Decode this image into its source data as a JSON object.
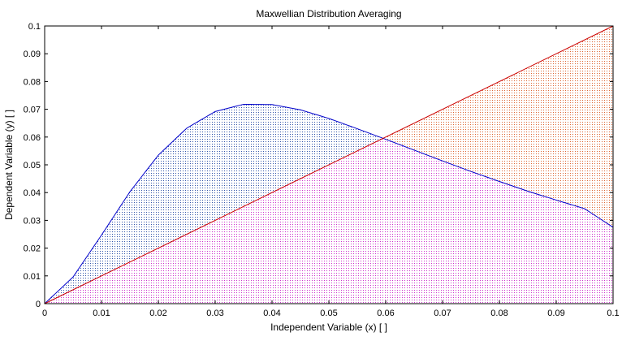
{
  "chart_data": {
    "type": "area",
    "title": "Maxwellian Distribution Averaging",
    "xlabel": "Independent Variable (x) [ ]",
    "ylabel": "Dependent Variable (y) [ ]",
    "xlim": [
      0,
      0.1
    ],
    "ylim": [
      0,
      0.1
    ],
    "x_ticks": [
      "0",
      "0.01",
      "0.02",
      "0.03",
      "0.04",
      "0.05",
      "0.06",
      "0.07",
      "0.08",
      "0.09",
      "0.1"
    ],
    "y_ticks": [
      "0",
      "0.01",
      "0.02",
      "0.03",
      "0.04",
      "0.05",
      "0.06",
      "0.07",
      "0.08",
      "0.09",
      "0.1"
    ],
    "grid": false,
    "legend": "none",
    "series": [
      {
        "color": "#0000cc",
        "x": [
          0,
          0.005,
          0.01,
          0.015,
          0.02,
          0.025,
          0.03,
          0.035,
          0.04,
          0.045,
          0.05,
          0.055,
          0.06,
          0.065,
          0.07,
          0.075,
          0.08,
          0.085,
          0.09,
          0.095,
          0.1
        ],
        "values": [
          0,
          0.0096,
          0.0247,
          0.0403,
          0.0535,
          0.0632,
          0.0692,
          0.0718,
          0.0717,
          0.0698,
          0.0667,
          0.063,
          0.0592,
          0.0553,
          0.0514,
          0.0476,
          0.044,
          0.0405,
          0.0373,
          0.0342,
          0.0275
        ]
      },
      {
        "color": "#cc0000",
        "x": [
          0,
          0.1
        ],
        "values": [
          0,
          0.1
        ]
      }
    ],
    "fill_colors": {
      "below_both": "#cc33cc",
      "curve_above_line": "#3355aa",
      "line_above_curve": "#dd6633"
    }
  }
}
